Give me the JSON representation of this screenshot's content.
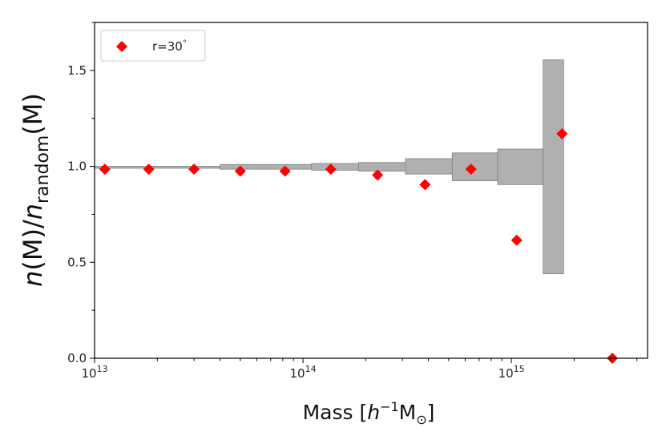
{
  "chart_data": {
    "type": "scatter",
    "xscale": "log",
    "xlim": [
      10000000000000.0,
      4500000000000000.0
    ],
    "ylim": [
      0.0,
      1.75
    ],
    "xticks": [
      {
        "value": 10000000000000.0,
        "base": "10",
        "exp": "13"
      },
      {
        "value": 100000000000000.0,
        "base": "10",
        "exp": "14"
      },
      {
        "value": 1000000000000000.0,
        "base": "10",
        "exp": "15"
      }
    ],
    "yticks": [
      {
        "value": 0.0,
        "label": "0.0"
      },
      {
        "value": 0.5,
        "label": "0.5"
      },
      {
        "value": 1.0,
        "label": "1.0"
      },
      {
        "value": 1.5,
        "label": "1.5"
      }
    ],
    "xlabel": {
      "text": "Mass [",
      "h": "h",
      "sup": "−1",
      "m": "M",
      "sun": "⊙",
      "close": "]"
    },
    "ylabel": {
      "n1": "n",
      "m1": "(M)/",
      "n2": "n",
      "sub": "random",
      "m2": "(M)"
    },
    "legend": {
      "label": "r=30",
      "deg": "°",
      "placement": "upper-left"
    },
    "series": [
      {
        "name": "r=30°",
        "color": "#ff0000",
        "x": [
          11200000000000.0,
          18200000000000.0,
          30000000000000.0,
          50000000000000.0,
          82000000000000.0,
          136000000000000.0,
          228000000000000.0,
          385000000000000.0,
          640000000000000.0,
          1060000000000000.0,
          1750000000000000.0,
          3050000000000000.0
        ],
        "y": [
          0.985,
          0.985,
          0.985,
          0.975,
          0.975,
          0.985,
          0.955,
          0.905,
          0.985,
          0.615,
          1.17,
          0.0
        ]
      }
    ],
    "band": {
      "color": "#b0b0b0",
      "edgecolor": "#808080",
      "steps": [
        {
          "x0": 10000000000000.0,
          "x1": 40000000000000.0,
          "lo": 0.99,
          "hi": 1.0
        },
        {
          "x0": 40000000000000.0,
          "x1": 110000000000000.0,
          "lo": 0.985,
          "hi": 1.01
        },
        {
          "x0": 110000000000000.0,
          "x1": 185000000000000.0,
          "lo": 0.98,
          "hi": 1.015
        },
        {
          "x0": 185000000000000.0,
          "x1": 310000000000000.0,
          "lo": 0.975,
          "hi": 1.02
        },
        {
          "x0": 310000000000000.0,
          "x1": 520000000000000.0,
          "lo": 0.96,
          "hi": 1.04
        },
        {
          "x0": 520000000000000.0,
          "x1": 860000000000000.0,
          "lo": 0.925,
          "hi": 1.07
        },
        {
          "x0": 860000000000000.0,
          "x1": 1420000000000000.0,
          "lo": 0.905,
          "hi": 1.09
        },
        {
          "x0": 1420000000000000.0,
          "x1": 1780000000000000.0,
          "lo": 0.44,
          "hi": 1.555
        }
      ]
    }
  }
}
